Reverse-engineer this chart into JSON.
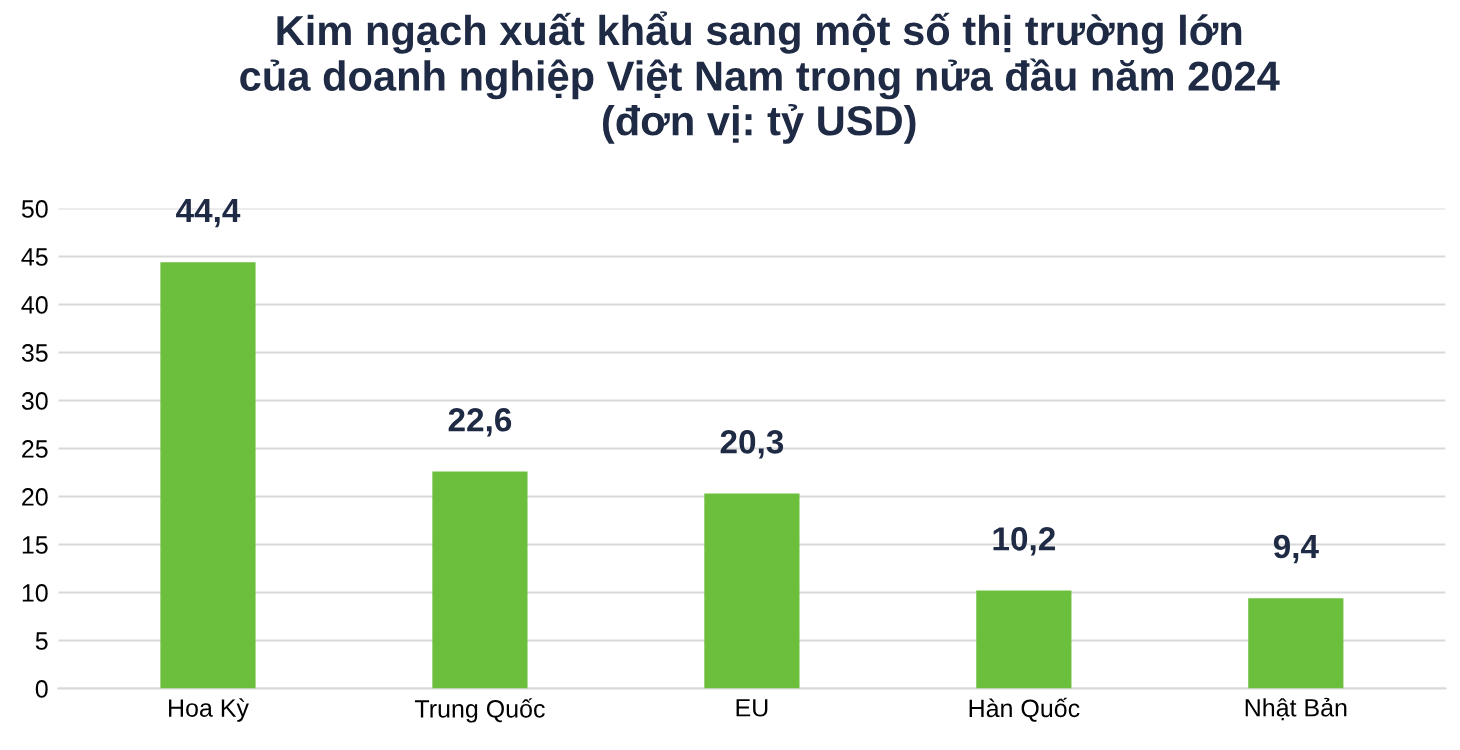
{
  "chart_data": {
    "type": "bar",
    "title": "Kim ngạch xuất khẩu sang một số thị trường lớn\ncủa doanh nghiệp Việt Nam trong nửa đầu năm 2024\n(đơn vị: tỷ USD)",
    "categories": [
      "Hoa Kỳ",
      "Trung Quốc",
      "EU",
      "Hàn Quốc",
      "Nhật Bản"
    ],
    "values": [
      44.4,
      22.6,
      20.3,
      10.2,
      9.4
    ],
    "value_labels": [
      "44,4",
      "22,6",
      "20,3",
      "10,2",
      "9,4"
    ],
    "color": "#6cbf3c",
    "ylim": [
      0,
      50
    ],
    "yticks": [
      0,
      5,
      10,
      15,
      20,
      25,
      30,
      35,
      40,
      45,
      50
    ],
    "grid": "y"
  }
}
